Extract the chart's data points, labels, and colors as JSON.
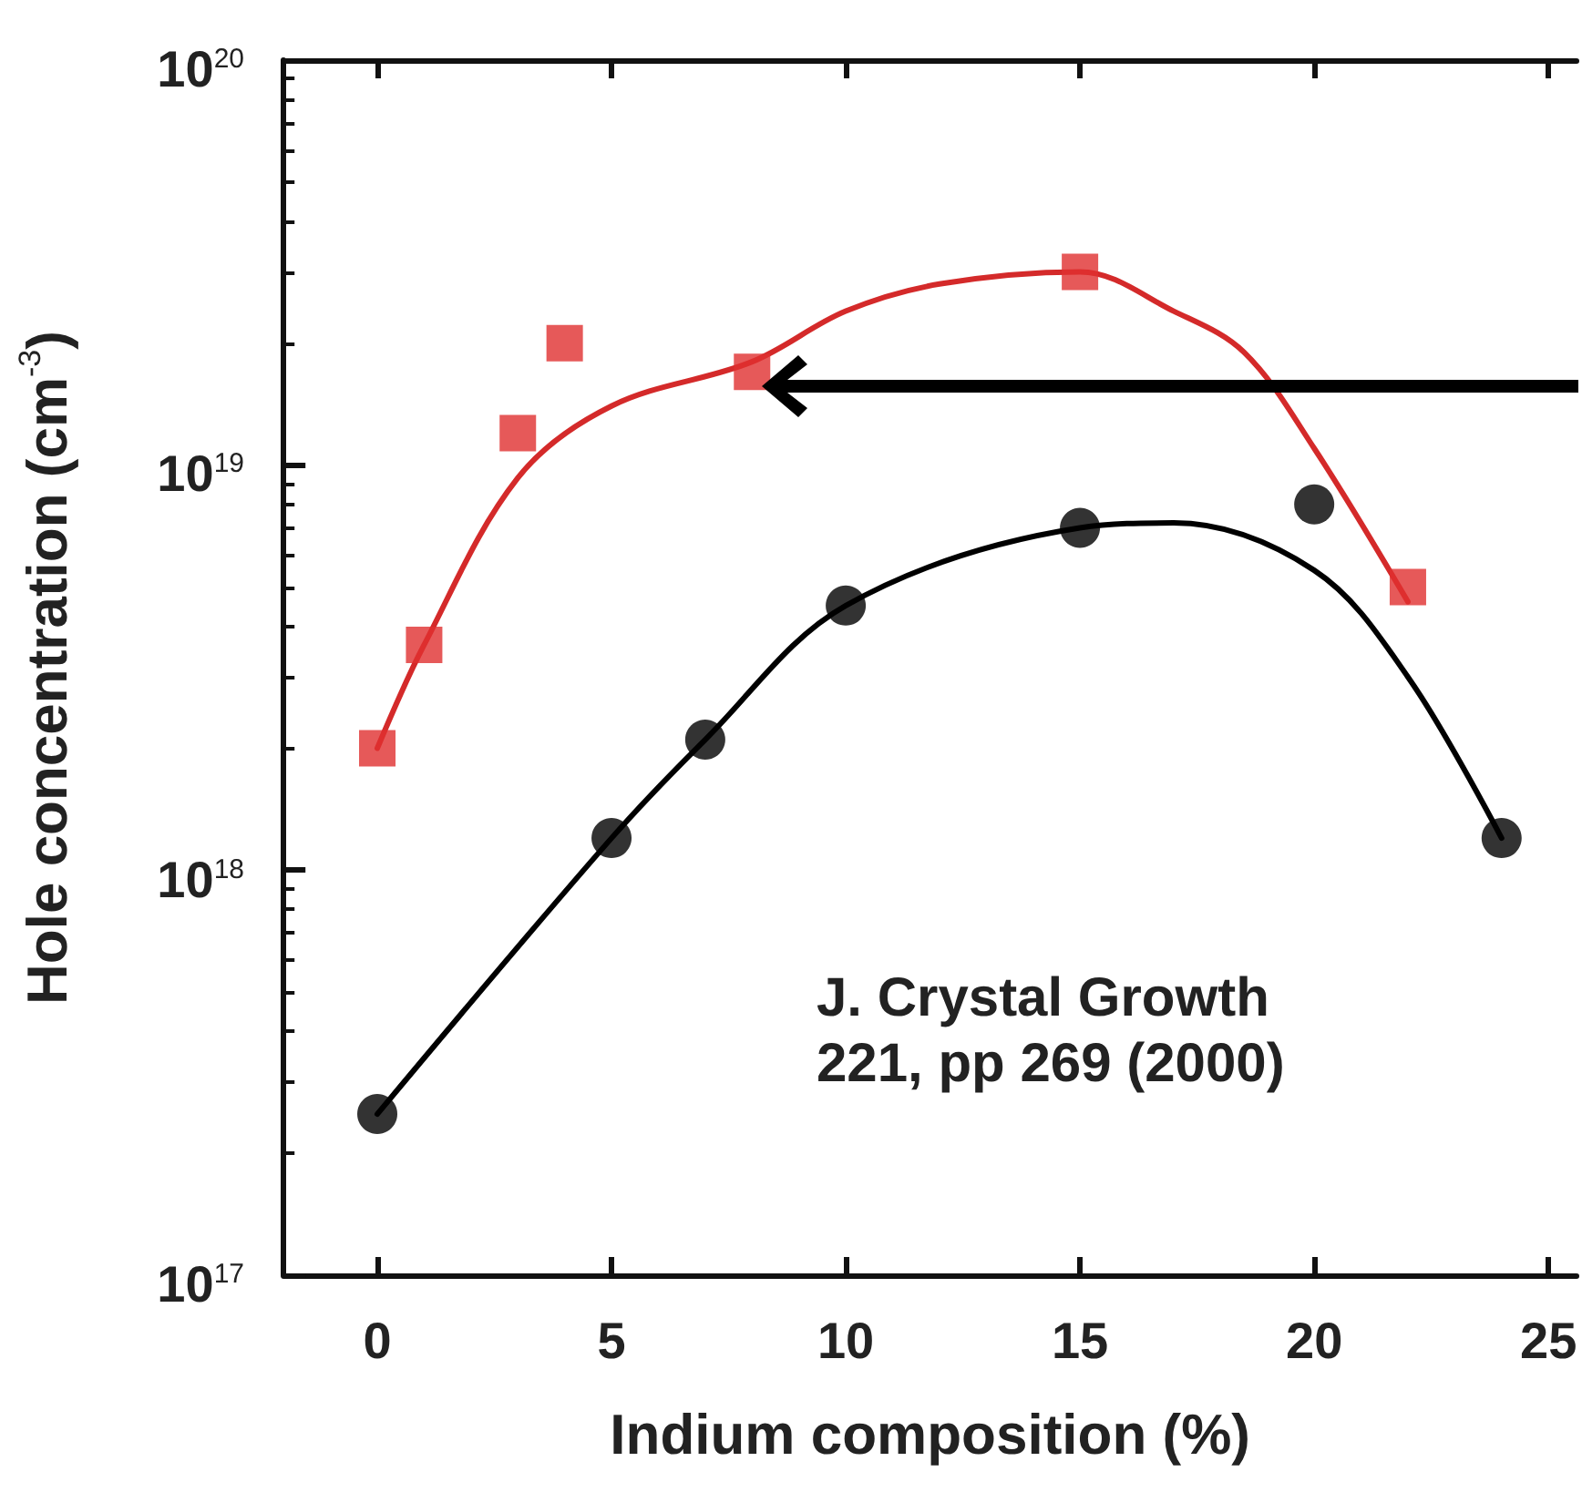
{
  "chart_data": {
    "type": "scatter",
    "xlabel": "Indium composition (%)",
    "ylabel": "Hole concentration (cm$^{-3}$)",
    "log": "y",
    "xlim": [
      -2,
      25.6
    ],
    "xticks": [
      0,
      5,
      10,
      15,
      20,
      25
    ],
    "ylim": [
      1e+17,
      1e+20
    ],
    "yticks": [
      {
        "value": 1e+17,
        "label": "10$^{17}$"
      },
      {
        "value": 1e+18,
        "label": "10$^{18}$"
      },
      {
        "value": 1e+19,
        "label": "10$^{19}$"
      },
      {
        "value": 1e+20,
        "label": "10$^{20}$"
      }
    ],
    "grid": false,
    "annotations": [
      "J. Crystal Growth\n221, pp 269 (2000)"
    ],
    "series": [
      {
        "type": "line",
        "marker": "none",
        "color": "#d42a2a",
        "x": [
          0,
          1,
          3,
          5,
          8,
          10,
          12,
          15,
          17,
          18.5,
          20,
          22
        ],
        "values": [
          2e+18,
          3.6e+18,
          9.3e+18,
          1.4e+19,
          1.8e+19,
          2.4e+19,
          2.8e+19,
          3e+19,
          2.4e+19,
          1.9e+19,
          1.1e+19,
          4.6e+18
        ]
      },
      {
        "type": "line",
        "marker": "none",
        "color": "#000000",
        "x": [
          0,
          5,
          7,
          10,
          15,
          17,
          20,
          22,
          24
        ],
        "values": [
          2.5e+17,
          1.2e+18,
          2.1e+18,
          4.5e+18,
          7e+18,
          7.2e+18,
          5.5e+18,
          3e+18,
          1.2e+18
        ]
      },
      {
        "type": "scatter",
        "marker": "square",
        "color": "#e03030",
        "x": [
          0,
          1,
          3,
          4,
          8,
          15,
          22
        ],
        "values": [
          2e+18,
          3.6e+18,
          1.2e+19,
          2e+19,
          1.7e+19,
          3e+19,
          5e+18
        ]
      },
      {
        "type": "scatter",
        "marker": "circle",
        "color": "#000000",
        "x": [
          0,
          5,
          7,
          10,
          15,
          20,
          24
        ],
        "values": [
          2.5e+17,
          1.2e+18,
          2.1e+18,
          4.5e+18,
          7e+18,
          8e+18,
          1.2e+18
        ]
      }
    ]
  }
}
